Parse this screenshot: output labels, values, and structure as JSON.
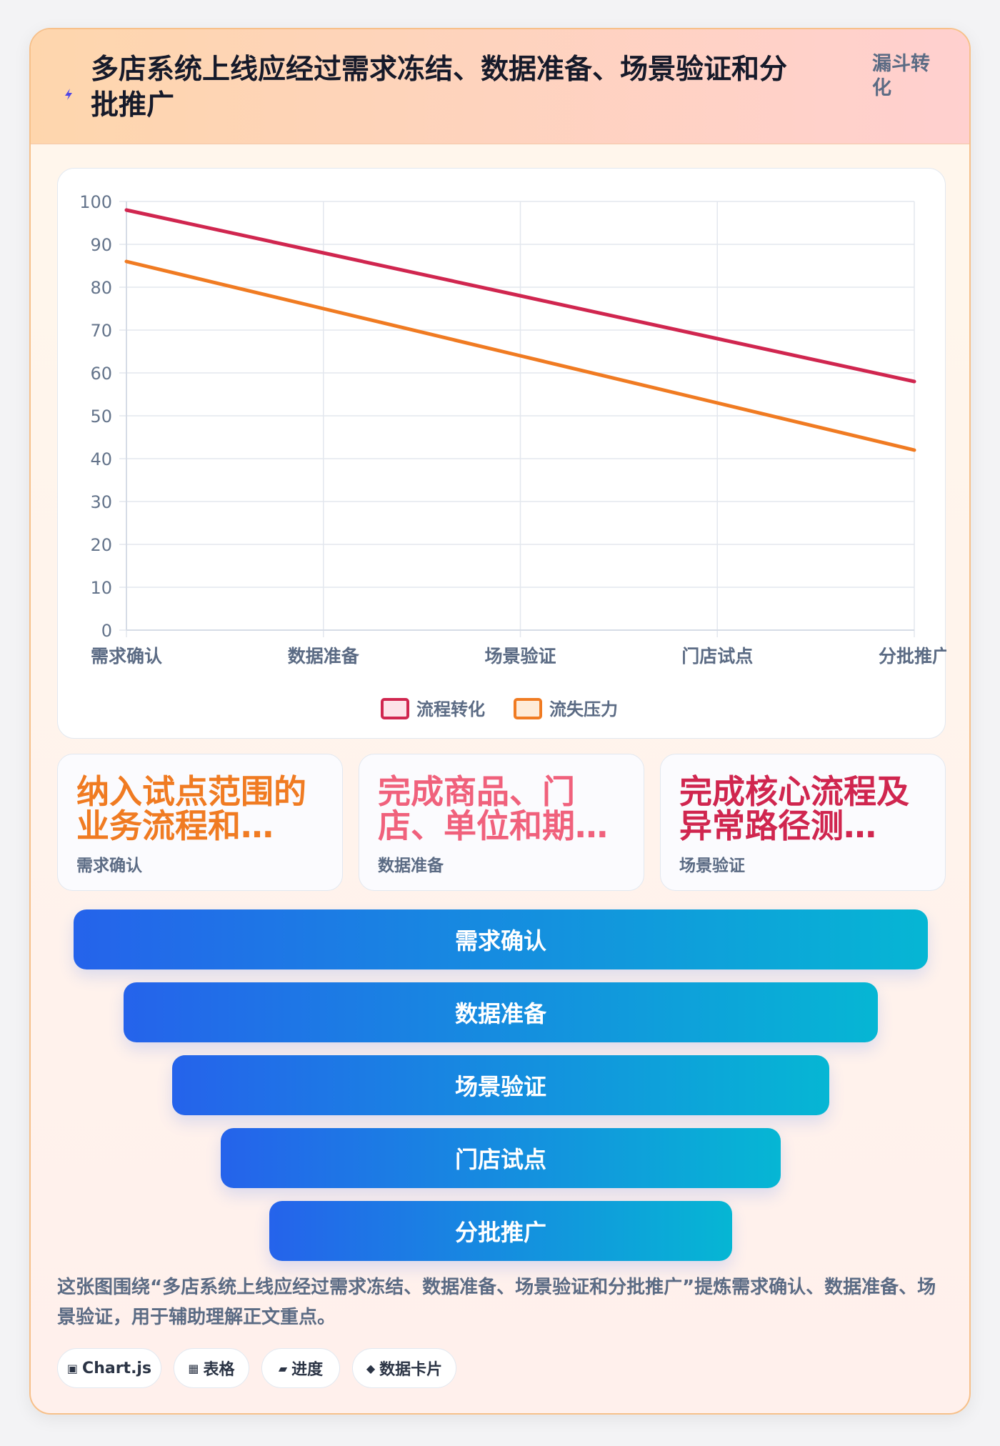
{
  "header": {
    "title": "多店系统上线应经过需求冻结、数据准备、场景验证和分批推广",
    "tag": "漏斗转化"
  },
  "chart_data": {
    "type": "line",
    "categories": [
      "需求确认",
      "数据准备",
      "场景验证",
      "门店试点",
      "分批推广"
    ],
    "series": [
      {
        "name": "流程转化",
        "values": [
          98,
          88,
          78,
          68,
          58
        ],
        "color": "#d0264f"
      },
      {
        "name": "流失压力",
        "values": [
          86,
          75,
          64,
          53,
          42
        ],
        "color": "#f07b22"
      }
    ],
    "ylim": [
      0,
      100
    ],
    "yticks": [
      0,
      10,
      20,
      30,
      40,
      50,
      60,
      70,
      80,
      90,
      100
    ],
    "grid": true,
    "legend": "bottom"
  },
  "stats": [
    {
      "value": "纳入试点范围的业务流程和…",
      "label": "需求确认",
      "color": "#f07b22"
    },
    {
      "value": "完成商品、门店、单位和期…",
      "label": "数据准备",
      "color": "#f0617c"
    },
    {
      "value": "完成核心流程及异常路径测…",
      "label": "场景验证",
      "color": "#d0264f"
    }
  ],
  "funnel": [
    "需求确认",
    "数据准备",
    "场景验证",
    "门店试点",
    "分批推广"
  ],
  "note": "这张图围绕“多店系统上线应经过需求冻结、数据准备、场景验证和分批推广”提炼需求确认、数据准备、场景验证，用于辅助理解正文重点。",
  "chips": [
    {
      "icon": "▣",
      "label": "Chart.js"
    },
    {
      "icon": "▦",
      "label": "表格"
    },
    {
      "icon": "▰",
      "label": "进度"
    },
    {
      "icon": "◆",
      "label": "数据卡片"
    }
  ]
}
